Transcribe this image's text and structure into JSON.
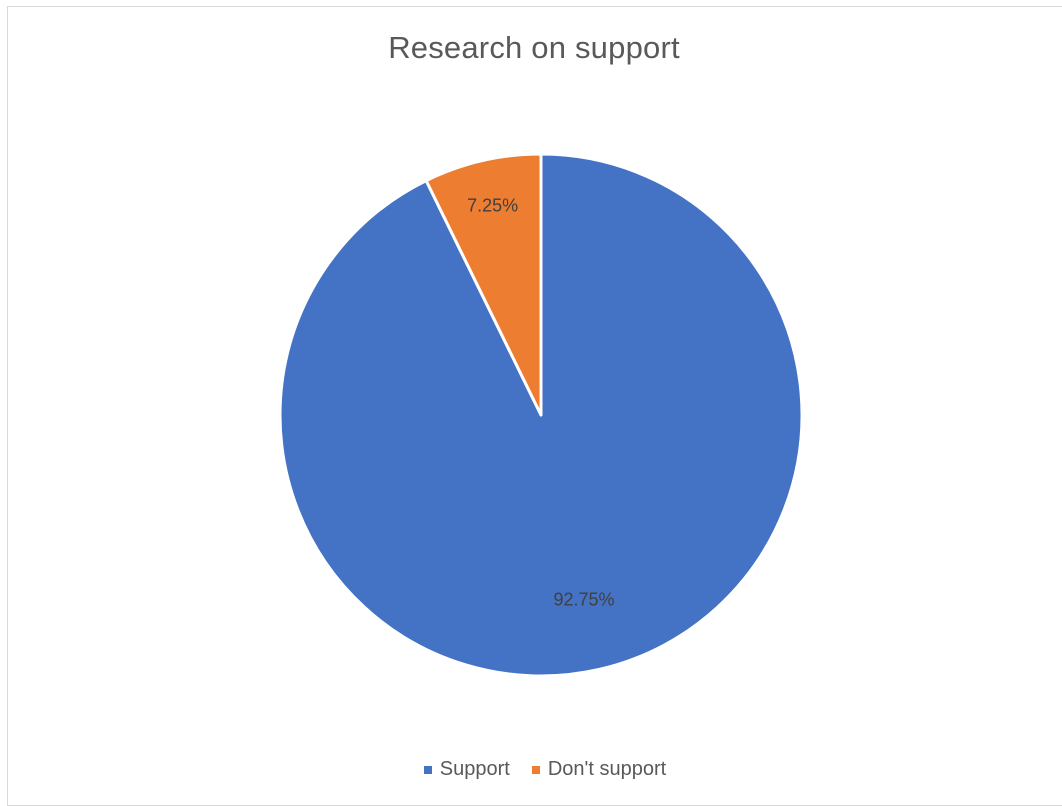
{
  "chart_data": {
    "type": "pie",
    "title": "Research on support",
    "slices": [
      {
        "label": "Support",
        "value": 92.75,
        "data_label": "92.75%",
        "color": "#4472C4"
      },
      {
        "label": "Don't support",
        "value": 7.25,
        "data_label": "7.25%",
        "color": "#ED7D31"
      }
    ],
    "start_angle_deg": 0,
    "direction": "counterclockwise-from-top",
    "legend_position": "bottom"
  }
}
